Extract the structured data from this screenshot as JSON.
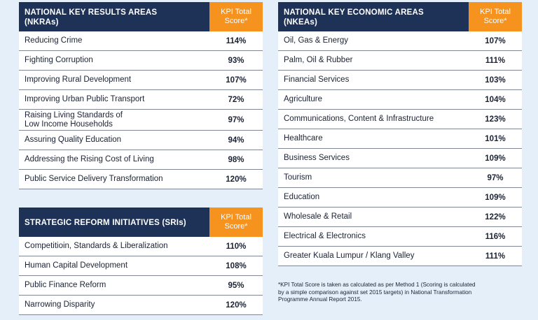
{
  "nkra": {
    "title_line1": "NATIONAL KEY RESULTS AREAS",
    "title_line2": "(NKRAs)",
    "score_header_line1": "KPI Total",
    "score_header_line2": "Score*",
    "rows": [
      {
        "label": "Reducing Crime",
        "score": "114%"
      },
      {
        "label": "Fighting Corruption",
        "score": "93%"
      },
      {
        "label": "Improving Rural Development",
        "score": "107%"
      },
      {
        "label": "Improving Urban Public Transport",
        "score": "72%"
      },
      {
        "label_line1": "Raising Living Standards of",
        "label_line2": "Low Income Households",
        "score": "97%"
      },
      {
        "label": "Assuring Quality Education",
        "score": "94%"
      },
      {
        "label": "Addressing the Rising Cost of Living",
        "score": "98%"
      },
      {
        "label": "Public Service Delivery Transformation",
        "score": "120%"
      }
    ]
  },
  "sri": {
    "title": "STRATEGIC REFORM INITIATIVES (SRIs)",
    "score_header_line1": "KPI Total",
    "score_header_line2": "Score*",
    "rows": [
      {
        "label": "Competitioin, Standards & Liberalization",
        "score": "110%"
      },
      {
        "label": "Human Capital Development",
        "score": "108%"
      },
      {
        "label": "Public Finance Reform",
        "score": "95%"
      },
      {
        "label": "Narrowing Disparity",
        "score": "120%"
      }
    ]
  },
  "nkea": {
    "title_line1": "NATIONAL KEY ECONOMIC AREAS",
    "title_line2": "(NKEAs)",
    "score_header_line1": "KPI Total",
    "score_header_line2": "Score*",
    "rows": [
      {
        "label": "Oil, Gas & Energy",
        "score": "107%"
      },
      {
        "label": "Palm, Oil & Rubber",
        "score": "111%"
      },
      {
        "label": "Financial Services",
        "score": "103%"
      },
      {
        "label": "Agriculture",
        "score": "104%"
      },
      {
        "label": "Communications, Content & Infrastructure",
        "score": "123%"
      },
      {
        "label": "Healthcare",
        "score": "101%"
      },
      {
        "label": "Business Services",
        "score": "109%"
      },
      {
        "label": "Tourism",
        "score": "97%"
      },
      {
        "label": "Education",
        "score": "109%"
      },
      {
        "label": "Wholesale & Retail",
        "score": "122%"
      },
      {
        "label": "Electrical & Electronics",
        "score": "116%"
      },
      {
        "label": "Greater Kuala Lumpur / Klang Valley",
        "score": "111%"
      }
    ]
  },
  "footnote": {
    "line1": "*KPI Total Score is taken as calculated as per Method 1 (Scoring is calculated",
    "line2": "by a simple comparison against set 2015 targets) in National Transformation",
    "line3": "Programme Annual Report 2015."
  },
  "colors": {
    "header_navy": "#1e3258",
    "header_orange": "#f6921e",
    "background": "#e4eff9"
  }
}
